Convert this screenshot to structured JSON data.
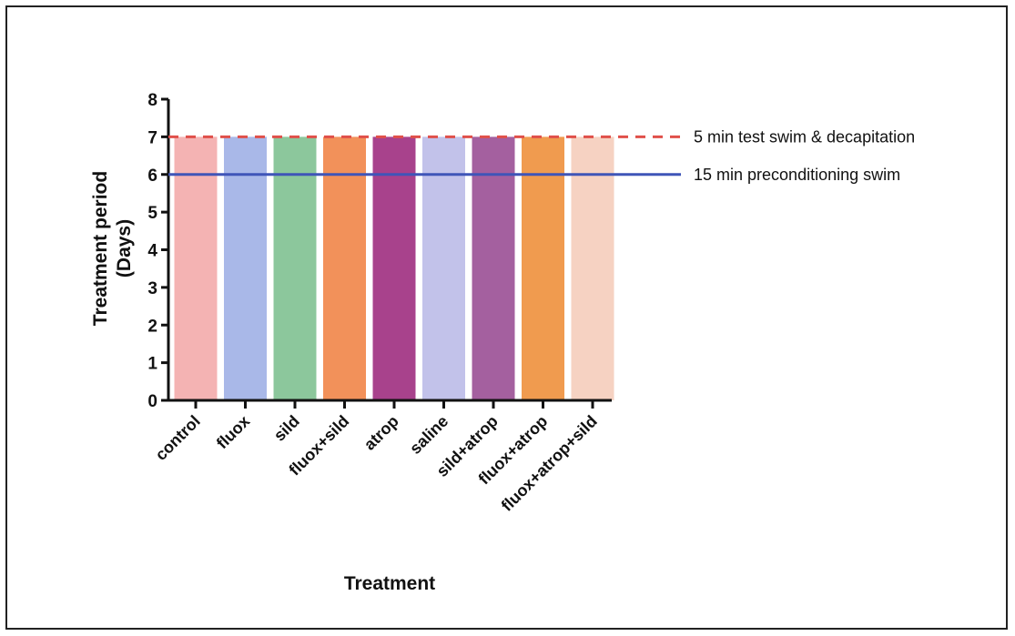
{
  "chart_data": {
    "type": "bar",
    "categories": [
      "control",
      "fluox",
      "sild",
      "fluox+sild",
      "atrop",
      "saline",
      "sild+atrop",
      "fluox+atrop",
      "fluox+atrop+sild"
    ],
    "values": [
      7,
      7,
      7,
      7,
      7,
      7,
      7,
      7,
      7
    ],
    "colors": [
      "#f4b3b3",
      "#a9b8e8",
      "#8cc79c",
      "#f2915a",
      "#a8428c",
      "#c2c2ea",
      "#a4609f",
      "#f09b4f",
      "#f6d2c2"
    ],
    "xlabel": "Treatment",
    "ylabel": [
      "Treatment period",
      "(Days)"
    ],
    "ylim": [
      0,
      8
    ],
    "yticks": [
      0,
      1,
      2,
      3,
      4,
      5,
      6,
      7,
      8
    ],
    "grid": false,
    "reference_lines": [
      {
        "y": 7,
        "label": "5 min test swim & decapitation",
        "color": "#e0504a",
        "style": "dashed"
      },
      {
        "y": 6,
        "label": "15 min preconditioning swim",
        "color": "#3f55b8",
        "style": "solid"
      }
    ]
  }
}
